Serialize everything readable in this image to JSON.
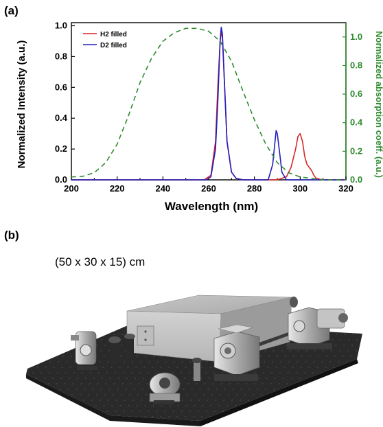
{
  "figure": {
    "panel_a_label": "(a)",
    "panel_b_label": "(b)",
    "dimension_text": "(50 x 30 x 15) cm"
  },
  "chart_data": {
    "type": "line",
    "xlabel": "Wavelength (nm)",
    "ylabel_left": "Normalized Intensity (a.u.)",
    "ylabel_right": "Normalized absorption coeff. (a.u.)",
    "xlim": [
      200,
      320
    ],
    "ylim_left": [
      0,
      1.02
    ],
    "ylim_right": [
      0,
      1.1
    ],
    "x_ticks": [
      "200",
      "220",
      "240",
      "260",
      "280",
      "300",
      "320"
    ],
    "y_ticks_left": [
      "0.0",
      "0.2",
      "0.4",
      "0.6",
      "0.8",
      "1.0"
    ],
    "y_ticks_right": [
      "0.0",
      "0.2",
      "0.4",
      "0.6",
      "0.8",
      "1.0"
    ],
    "legend_position": "top-left",
    "grid": false,
    "series": [
      {
        "name": "H2 filled",
        "axis": "left",
        "color": "#d62728",
        "style": "solid",
        "x": [
          200,
          258,
          261,
          263,
          264,
          265,
          265.5,
          266,
          267,
          268,
          270,
          272,
          275,
          290,
          294,
          296,
          298,
          299,
          300,
          301,
          302,
          303,
          304,
          305,
          306,
          307,
          310,
          320
        ],
        "y": [
          0.0,
          0.0,
          0.03,
          0.25,
          0.6,
          0.9,
          0.96,
          0.92,
          0.6,
          0.25,
          0.05,
          0.01,
          0.0,
          0.0,
          0.02,
          0.08,
          0.2,
          0.28,
          0.3,
          0.25,
          0.15,
          0.1,
          0.08,
          0.06,
          0.03,
          0.01,
          0.0,
          0.0
        ]
      },
      {
        "name": "D2 filled",
        "axis": "left",
        "color": "#1f1fbf",
        "style": "solid",
        "x": [
          200,
          259,
          261,
          263,
          264,
          265,
          265.5,
          266,
          267,
          268,
          270,
          272,
          275,
          286,
          288,
          289,
          289.5,
          290,
          291,
          292,
          294,
          320
        ],
        "y": [
          0.0,
          0.0,
          0.02,
          0.2,
          0.5,
          0.9,
          0.99,
          0.95,
          0.6,
          0.25,
          0.05,
          0.01,
          0.0,
          0.0,
          0.1,
          0.25,
          0.32,
          0.3,
          0.18,
          0.05,
          0.0,
          0.0
        ]
      },
      {
        "name": "",
        "axis": "right",
        "color": "#2e8b2e",
        "style": "dashed",
        "x": [
          200,
          205,
          210,
          215,
          220,
          225,
          230,
          235,
          240,
          245,
          250,
          255,
          260,
          265,
          270,
          275,
          280,
          285,
          290,
          295,
          300,
          305,
          310,
          320
        ],
        "y": [
          0.02,
          0.025,
          0.05,
          0.12,
          0.25,
          0.45,
          0.68,
          0.85,
          0.97,
          1.03,
          1.06,
          1.06,
          1.04,
          0.97,
          0.83,
          0.62,
          0.42,
          0.25,
          0.12,
          0.05,
          0.02,
          0.01,
          0.0,
          0.0
        ]
      }
    ]
  }
}
